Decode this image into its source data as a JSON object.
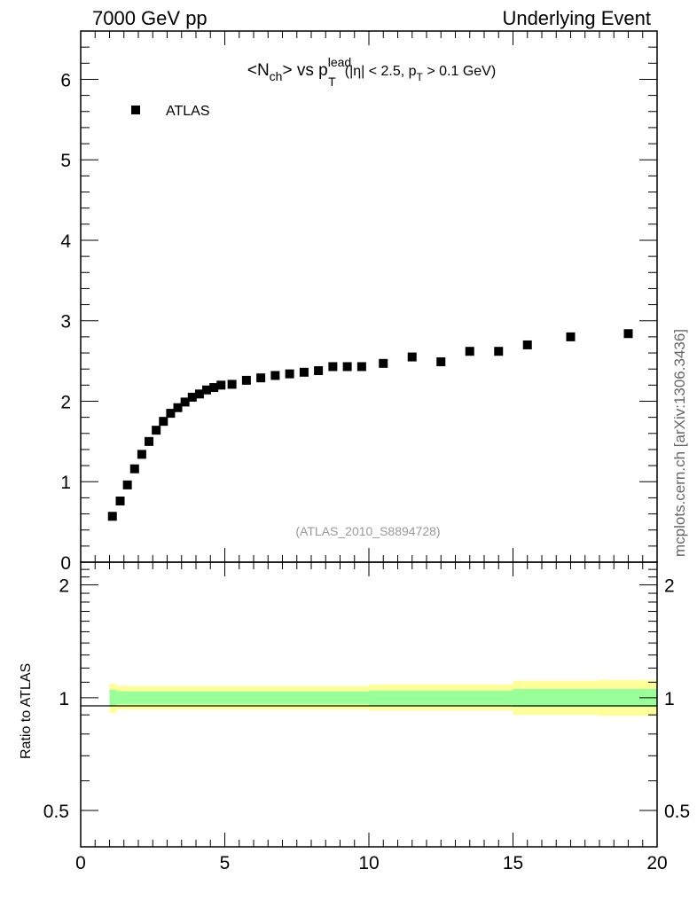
{
  "header": {
    "left": "7000 GeV pp",
    "right": "Underlying Event",
    "side": "mcplots.cern.ch [arXiv:1306.3436]"
  },
  "title": {
    "n": "<N",
    "n_sub": "ch",
    "vs": "> vs p",
    "pt_sup": "lead",
    "pt_sub": "T",
    "cuts_a": "(|η| < 2.5, p",
    "cuts_sub": "T",
    "cuts_b": " > 0.1 GeV)"
  },
  "watermark": "(ATLAS_2010_S8894728)",
  "colors": {
    "band_outer": "#ffff99",
    "band_inner": "#99ff99",
    "marker": "#000000"
  },
  "chart_data": [
    {
      "panel": "main",
      "type": "scatter",
      "xlim": [
        0,
        20
      ],
      "ylim": [
        0,
        6.6
      ],
      "yticks": [
        0,
        1,
        2,
        3,
        4,
        5,
        6
      ],
      "ytick_labels": [
        "0",
        "1",
        "2",
        "3",
        "4",
        "5",
        "6"
      ],
      "legend": {
        "position": "top-left",
        "entries": [
          "ATLAS"
        ]
      },
      "series": [
        {
          "name": "ATLAS",
          "marker": "square",
          "x": [
            1.1,
            1.37,
            1.62,
            1.87,
            2.12,
            2.37,
            2.62,
            2.87,
            3.12,
            3.37,
            3.62,
            3.87,
            4.12,
            4.37,
            4.62,
            4.87,
            5.25,
            5.75,
            6.25,
            6.75,
            7.25,
            7.75,
            8.25,
            8.75,
            9.25,
            9.75,
            10.5,
            11.5,
            12.5,
            13.5,
            14.5,
            15.5,
            17.0,
            19.0
          ],
          "y": [
            0.57,
            0.76,
            0.96,
            1.16,
            1.34,
            1.5,
            1.64,
            1.75,
            1.85,
            1.92,
            1.99,
            2.05,
            2.09,
            2.14,
            2.17,
            2.2,
            2.21,
            2.26,
            2.29,
            2.32,
            2.34,
            2.36,
            2.38,
            2.43,
            2.43,
            2.43,
            2.47,
            2.55,
            2.49,
            2.62,
            2.62,
            2.7,
            2.8,
            2.84
          ]
        }
      ]
    },
    {
      "panel": "ratio",
      "type": "area",
      "ylabel": "Ratio to ATLAS",
      "xlabel": "",
      "xlim": [
        0,
        20
      ],
      "ylim": [
        0.4,
        2.3
      ],
      "yscale": "log",
      "xticks": [
        0,
        5,
        10,
        15,
        20
      ],
      "xtick_labels": [
        "0",
        "5",
        "10",
        "15",
        "20"
      ],
      "yticks": [
        0.5,
        1,
        2
      ],
      "ytick_labels": [
        "0.5",
        "1",
        "2"
      ],
      "reference_line": 1.0,
      "bins": [
        {
          "x0": 1.0,
          "x1": 1.25,
          "inner": [
            0.95,
            1.05
          ],
          "outer": [
            0.91,
            1.09
          ]
        },
        {
          "x0": 1.25,
          "x1": 10.0,
          "inner": [
            0.96,
            1.04
          ],
          "outer": [
            0.93,
            1.075
          ]
        },
        {
          "x0": 10.0,
          "x1": 15.0,
          "inner": [
            0.955,
            1.045
          ],
          "outer": [
            0.925,
            1.085
          ]
        },
        {
          "x0": 15.0,
          "x1": 18.0,
          "inner": [
            0.945,
            1.055
          ],
          "outer": [
            0.9,
            1.11
          ]
        },
        {
          "x0": 18.0,
          "x1": 20.0,
          "inner": [
            0.945,
            1.055
          ],
          "outer": [
            0.895,
            1.115
          ]
        }
      ]
    }
  ]
}
